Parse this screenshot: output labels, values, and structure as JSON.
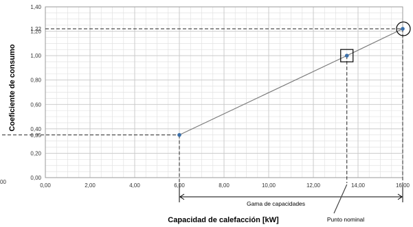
{
  "chart_data": {
    "type": "line",
    "xlabel": "Capacidad de calefacción [kW]",
    "ylabel": "Coeficiente de consumo",
    "xlim": [
      0,
      16
    ],
    "ylim": [
      0,
      1.4
    ],
    "x_ticks": [
      "0,00",
      "2,00",
      "4,00",
      "6,00",
      "8,00",
      "10,00",
      "12,00",
      "14,00",
      "16,00"
    ],
    "y_ticks": [
      "0,00",
      "0,20",
      "0,40",
      "0,60",
      "0,80",
      "1,00",
      "1,20",
      "1,40"
    ],
    "extra_y_labels": [
      {
        "text": "0,35",
        "value": 0.35
      },
      {
        "text": "1,22",
        "value": 1.22
      }
    ],
    "minor_grid": true,
    "series": [
      {
        "x": [
          6.0,
          13.5,
          16.0
        ],
        "y": [
          0.35,
          1.0,
          1.22
        ]
      }
    ],
    "annotations": {
      "range_label": "Gama de capacidades",
      "range": [
        6.0,
        16.0
      ],
      "nominal_label": "Punto nominal",
      "nominal_x": 13.5,
      "partial_tick": "00"
    },
    "colors": {
      "line": "#7a7a7a",
      "point": "#3a6ea8",
      "grid": "#c8c8c8",
      "grid_minor": "#e2e2e2"
    }
  }
}
